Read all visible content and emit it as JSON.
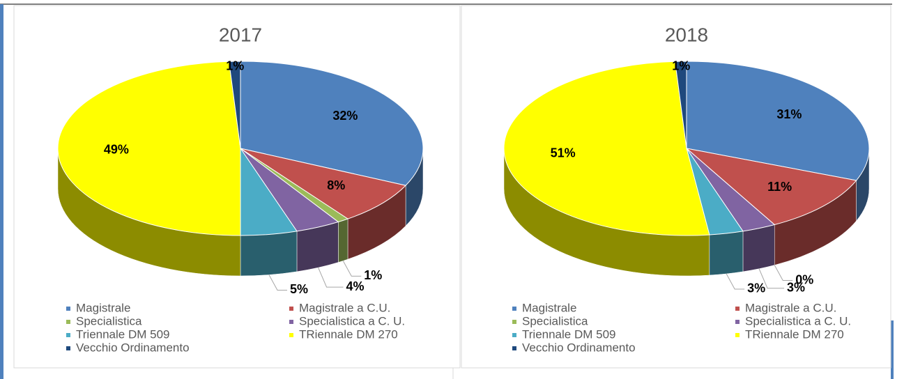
{
  "chart_data": [
    {
      "type": "pie",
      "title": "2017",
      "categories": [
        "Magistrale",
        "Magistrale a C.U.",
        "Specialistica",
        "Specialistica a C. U.",
        "Triennale DM 509",
        "TRiennale DM 270",
        "Vecchio Ordinamento"
      ],
      "values": [
        32,
        8,
        1,
        4,
        5,
        49,
        1
      ],
      "value_labels": [
        "32%",
        "8%",
        "1%",
        "4%",
        "5%",
        "49%",
        "1%"
      ],
      "colors": [
        "#4f81bd",
        "#c0504d",
        "#9bbb59",
        "#8064a2",
        "#4bacc6",
        "#ffff00",
        "#1f497d"
      ]
    },
    {
      "type": "pie",
      "title": "2018",
      "categories": [
        "Magistrale",
        "Magistrale a C.U.",
        "Specialistica",
        "Specialistica a C. U.",
        "Triennale DM 509",
        "TRiennale DM 270",
        "Vecchio Ordinamento"
      ],
      "values": [
        31,
        11,
        0,
        3,
        3,
        51,
        1
      ],
      "value_labels": [
        "31%",
        "11%",
        "0%",
        "3%",
        "3%",
        "51%",
        "1%"
      ],
      "colors": [
        "#4f81bd",
        "#c0504d",
        "#9bbb59",
        "#8064a2",
        "#4bacc6",
        "#ffff00",
        "#1f497d"
      ]
    }
  ]
}
